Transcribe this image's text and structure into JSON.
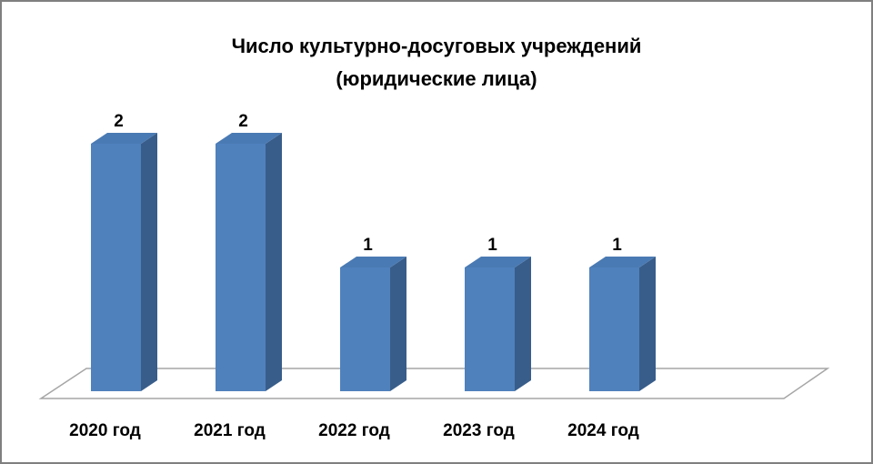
{
  "chart_data": {
    "type": "bar3d",
    "title": [
      "Число культурно-досуговых учреждений",
      "(юридические лица)"
    ],
    "categories": [
      "2020 год",
      "2021 год",
      "2022 год",
      "2023 год",
      "2024 год"
    ],
    "values": [
      2,
      2,
      1,
      1,
      1
    ],
    "color": "#4f81bd"
  }
}
